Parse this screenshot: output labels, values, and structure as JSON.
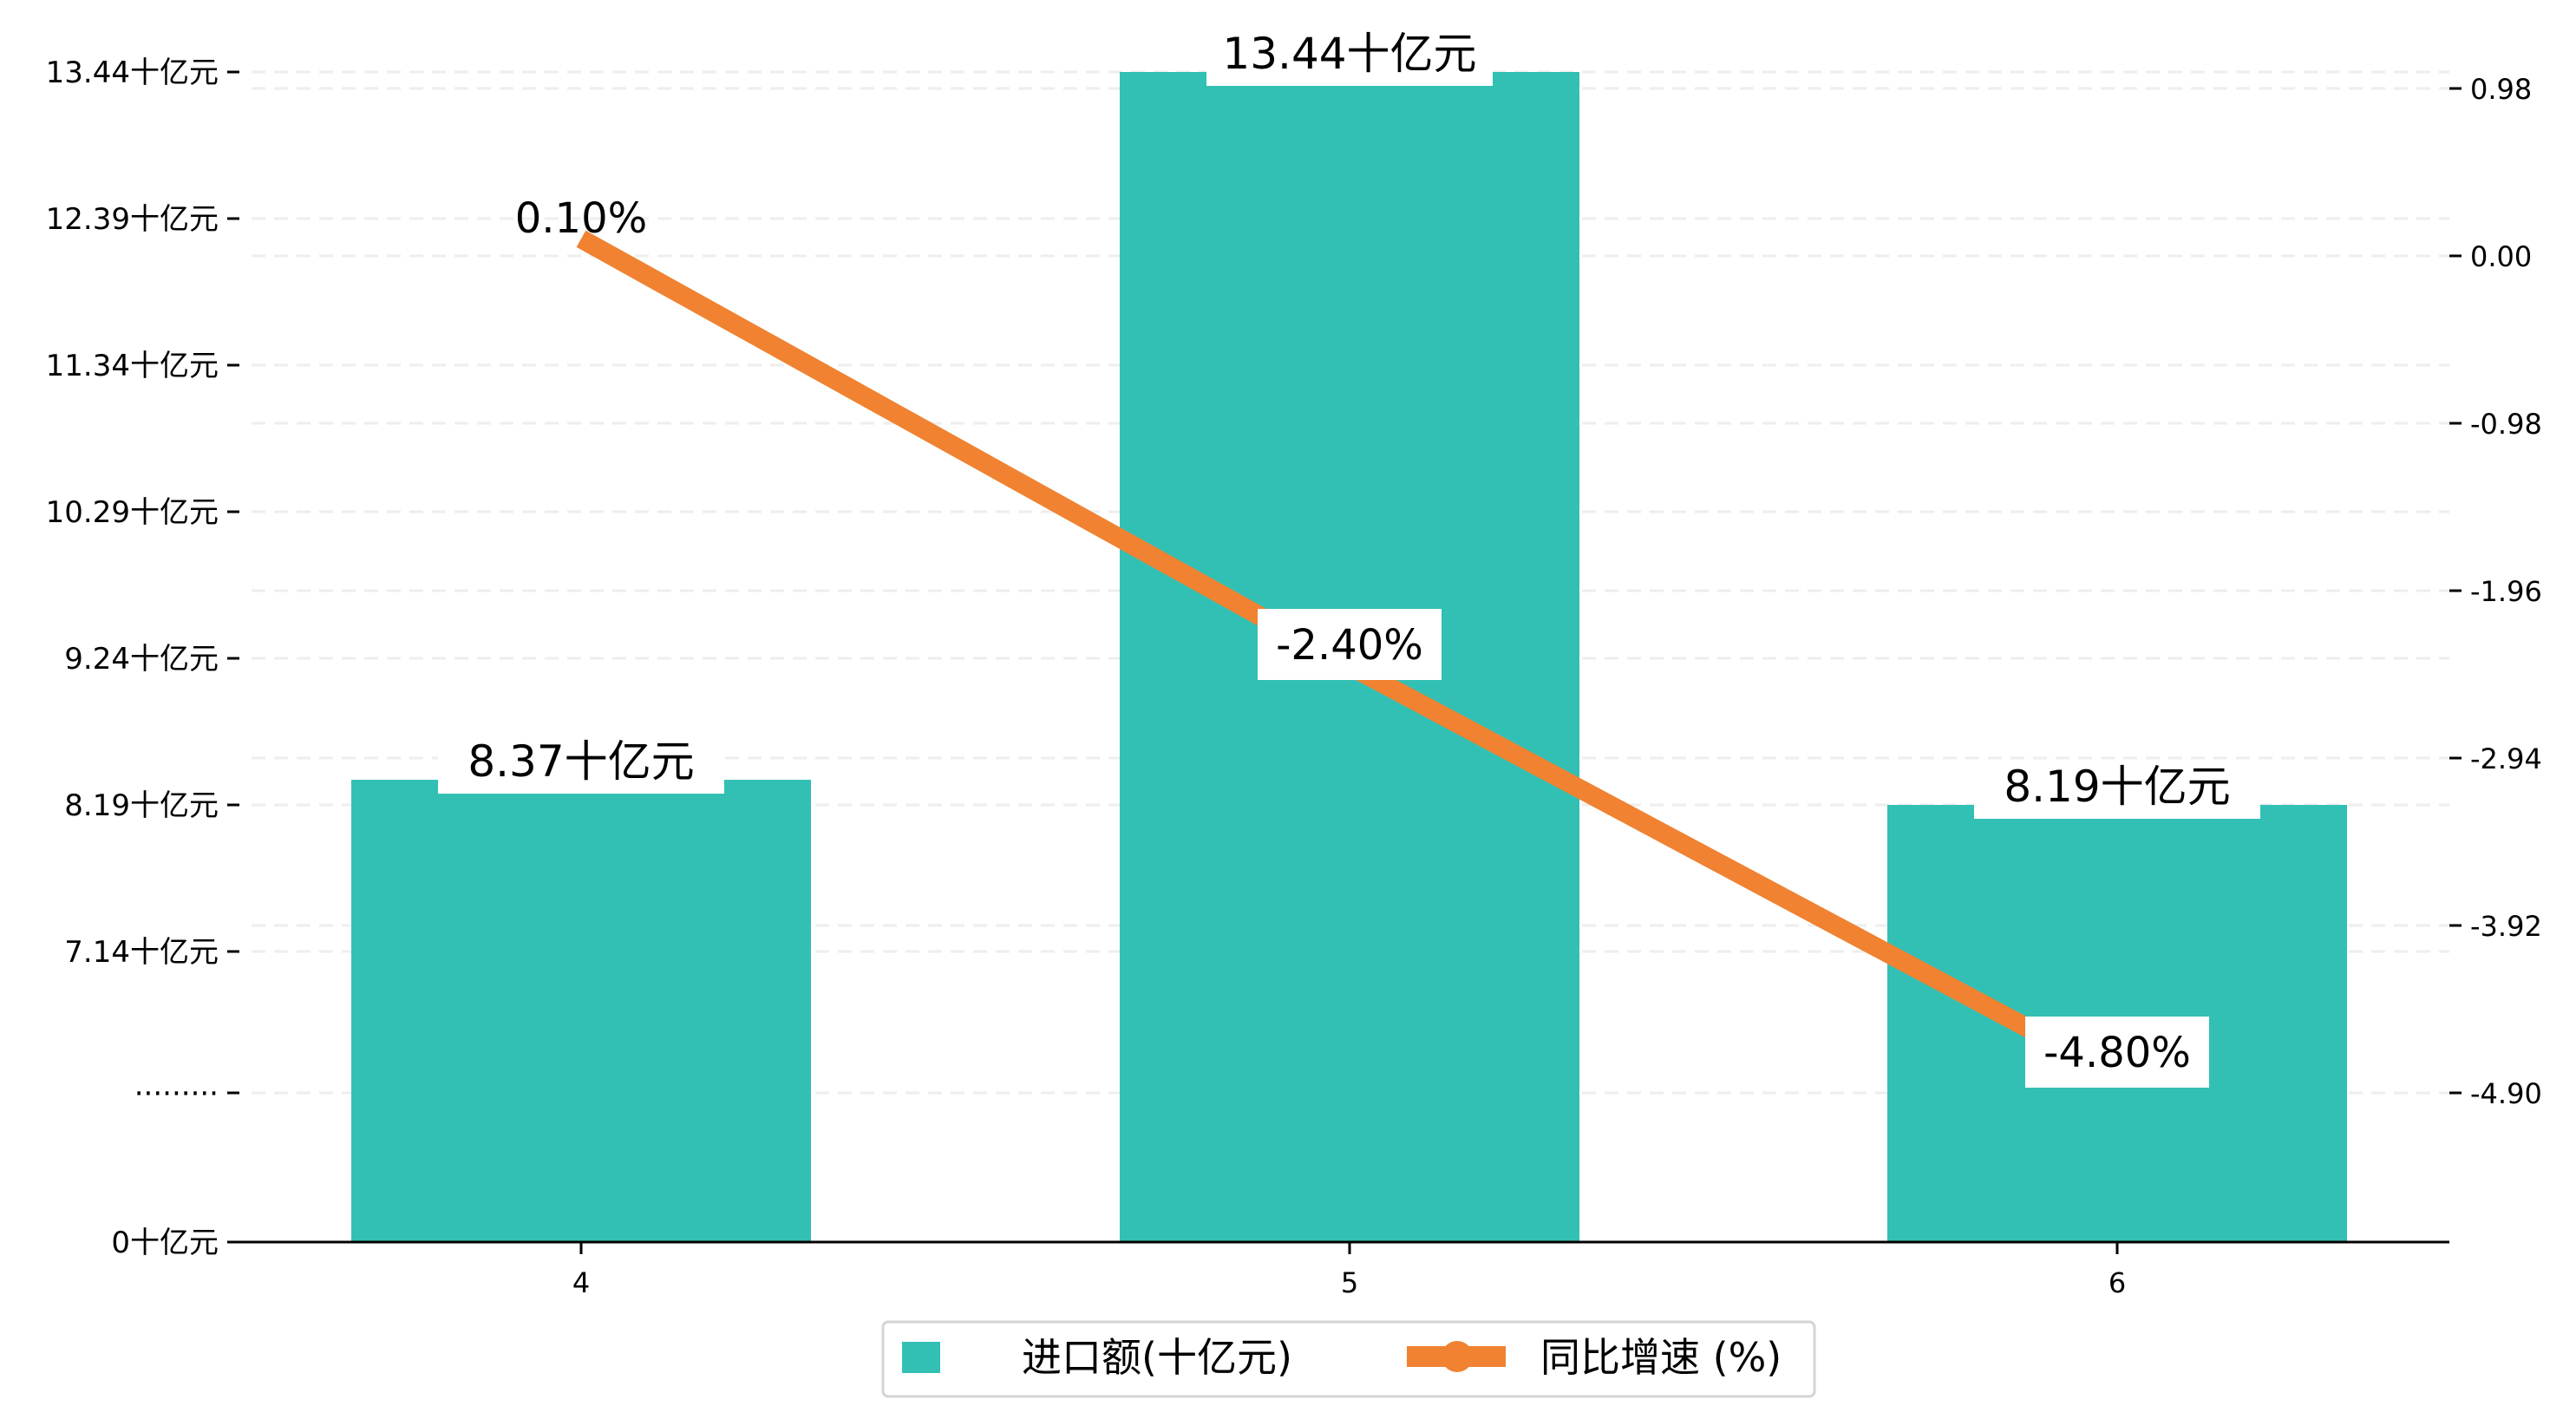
{
  "chart_data": {
    "type": "bar+line",
    "categories": [
      "4",
      "5",
      "6"
    ],
    "series": [
      {
        "name": "进口额(十亿元)",
        "type": "bar",
        "axis": "left",
        "values": [
          8.37,
          13.44,
          8.19
        ],
        "labels": [
          "8.37十亿元",
          "13.44十亿元",
          "8.19十亿元"
        ]
      },
      {
        "name": "同比增速 (%)",
        "type": "line",
        "axis": "right",
        "values": [
          0.1,
          -2.4,
          -4.8
        ],
        "labels": [
          "0.10%",
          "-2.40%",
          "-4.80%"
        ]
      }
    ],
    "left_axis": {
      "ticks": [
        0,
        7.14,
        8.19,
        9.24,
        10.29,
        11.34,
        12.39,
        13.44
      ],
      "tick_labels": [
        "0十亿元",
        "·········",
        "7.14十亿元",
        "8.19十亿元",
        "9.24十亿元",
        "10.29十亿元",
        "11.34十亿元",
        "12.39十亿元",
        "13.44十亿元"
      ],
      "broken": true
    },
    "right_axis": {
      "ticks": [
        0.98,
        0.0,
        -0.98,
        -1.96,
        -2.94,
        -3.92,
        -4.9
      ],
      "tick_labels": [
        "0.98",
        "0.00",
        "-0.98",
        "-1.96",
        "-2.94",
        "-3.92",
        "-4.90"
      ]
    },
    "grid": "horizontal dashed",
    "legend": {
      "placement": "bottom-center",
      "entries": [
        "进口额(十亿元)",
        "同比增速 (%)"
      ]
    },
    "colors": {
      "bar": "#32c0b4",
      "line": "#f08231"
    }
  }
}
